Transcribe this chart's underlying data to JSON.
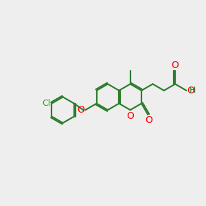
{
  "bg_color": "#eeeeee",
  "bond_color": "#2d7d2d",
  "oxygen_color": "#ff0000",
  "chlorine_color": "#22aa22",
  "line_width": 1.6,
  "font_size": 10,
  "figsize": [
    3.0,
    3.0
  ],
  "dpi": 100,
  "xlim": [
    -0.85,
    0.85
  ],
  "ylim": [
    -0.55,
    0.55
  ]
}
